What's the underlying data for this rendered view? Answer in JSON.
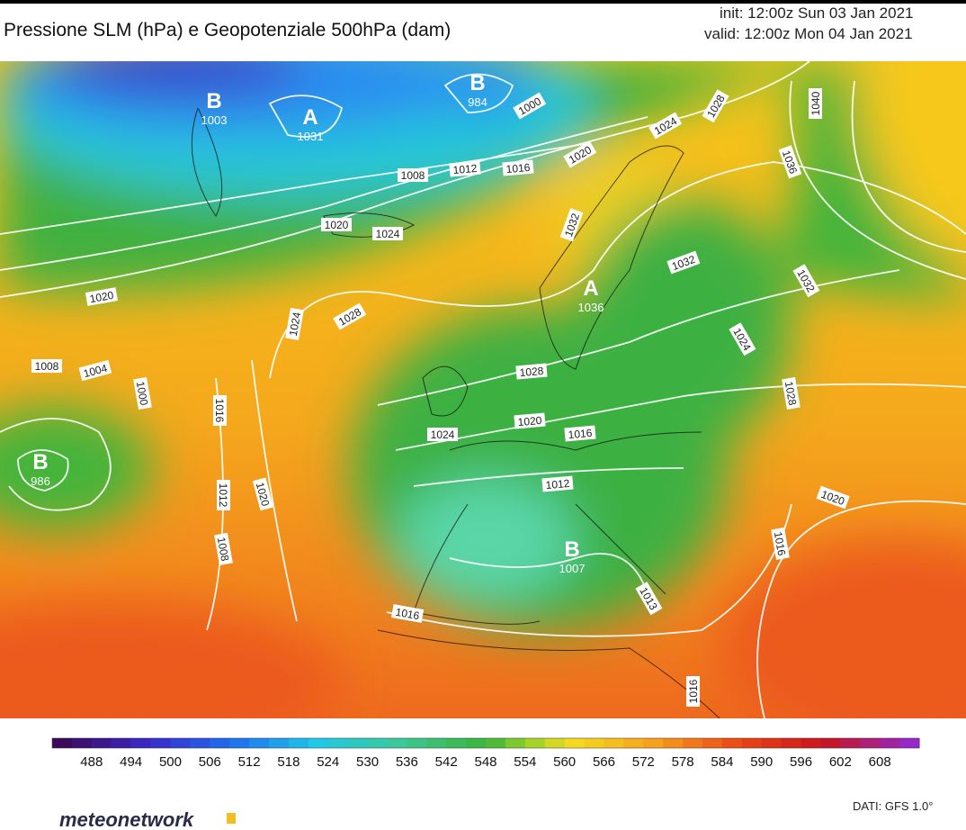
{
  "header": {
    "title": "Pressione SLM (hPa) e Geopotenziale 500hPa (dam)",
    "init": "init: 12:00z Sun 03 Jan 2021",
    "valid": "valid: 12:00z Mon 04 Jan 2021"
  },
  "map": {
    "pressure_centers": [
      {
        "symbol": "B",
        "value": 1003
      },
      {
        "symbol": "A",
        "value": 1031
      },
      {
        "symbol": "B",
        "value": 984
      },
      {
        "symbol": "B",
        "value": 986
      },
      {
        "symbol": "B",
        "value": 1007
      },
      {
        "symbol": "A",
        "value": 1036
      }
    ],
    "isobar_labels": [
      1000,
      1008,
      1012,
      1016,
      1020,
      1024,
      1028,
      1040,
      1036,
      1020,
      1024,
      1032,
      1032,
      1032,
      1020,
      1024,
      1028,
      1008,
      1004,
      1000,
      1016,
      1024,
      1028,
      1028,
      1024,
      1020,
      1016,
      1012,
      1012,
      1020,
      1020,
      1008,
      1016,
      1016,
      1013,
      1016
    ]
  },
  "colorbar": {
    "ticks": [
      488,
      494,
      500,
      506,
      512,
      518,
      524,
      530,
      536,
      542,
      548,
      554,
      560,
      566,
      572,
      578,
      584,
      590,
      596,
      602,
      608
    ]
  },
  "footer": {
    "logo": "meteonetwork",
    "source": "DATI: GFS 1.0°"
  }
}
